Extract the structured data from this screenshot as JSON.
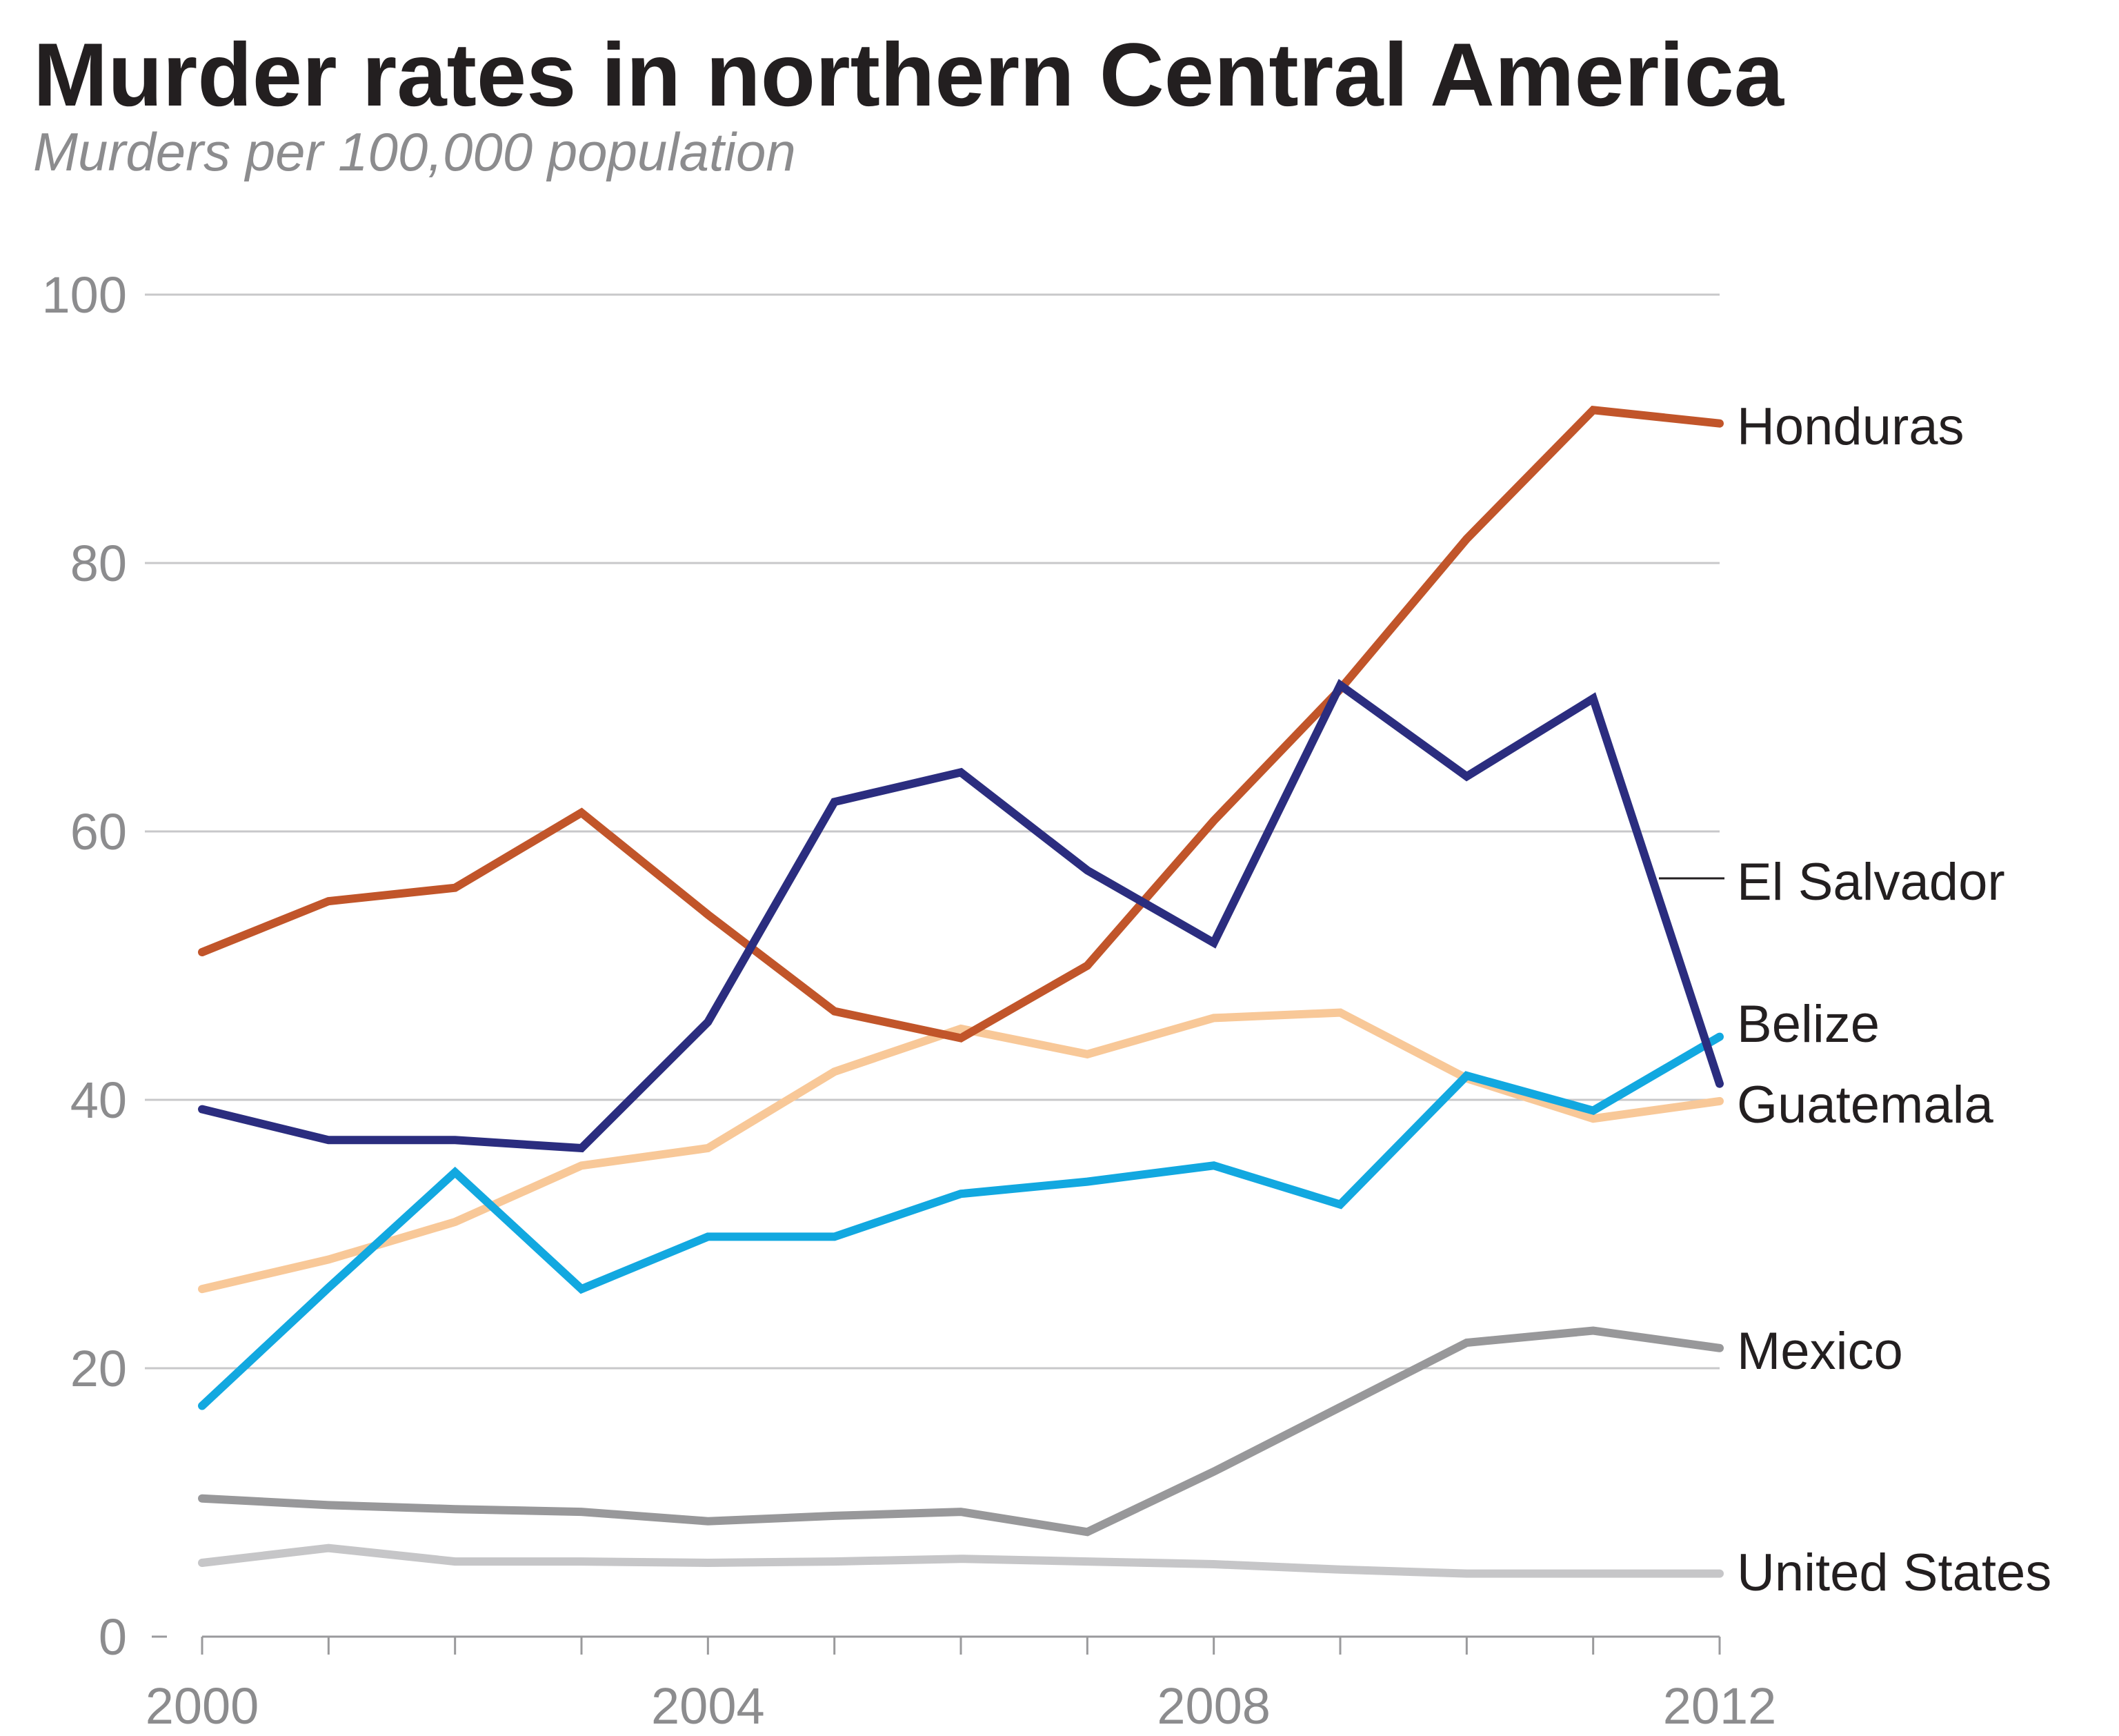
{
  "chart_data": {
    "type": "line",
    "title": "Murder rates in northern Central America",
    "subtitle": "Murders per 100,000 population",
    "xlabel": "",
    "ylabel": "",
    "x": [
      2000,
      2001,
      2002,
      2003,
      2004,
      2005,
      2006,
      2007,
      2008,
      2009,
      2010,
      2011,
      2012
    ],
    "xlim": [
      2000,
      2012
    ],
    "ylim": [
      0,
      100
    ],
    "x_ticks": [
      2000,
      2001,
      2002,
      2003,
      2004,
      2005,
      2006,
      2007,
      2008,
      2009,
      2010,
      2011,
      2012
    ],
    "x_tick_labels": [
      "2000",
      "2004",
      "2008",
      "2012"
    ],
    "y_ticks": [
      0,
      20,
      40,
      60,
      80,
      100
    ],
    "y_tick_labels": [
      "0",
      "20",
      "40",
      "60",
      "80",
      "100"
    ],
    "grid": "horizontal",
    "legend": "direct labels at right",
    "series": [
      {
        "name": "Honduras",
        "color": "#c1552a",
        "values": [
          51.0,
          54.8,
          55.8,
          61.4,
          53.8,
          46.6,
          44.6,
          50.0,
          60.8,
          70.6,
          81.8,
          91.4,
          90.4
        ]
      },
      {
        "name": "El Salvador",
        "color": "#2b2d7f",
        "values": [
          39.3,
          37.0,
          37.0,
          36.4,
          45.8,
          62.2,
          64.4,
          57.1,
          51.7,
          70.9,
          64.1,
          69.9,
          41.2
        ]
      },
      {
        "name": "Belize",
        "color": "#12a8e0",
        "values": [
          17.2,
          26.0,
          34.6,
          25.9,
          29.8,
          29.8,
          33.0,
          33.9,
          35.1,
          32.2,
          41.8,
          39.2,
          44.7
        ]
      },
      {
        "name": "Guatemala",
        "color": "#f8c898",
        "values": [
          25.9,
          28.1,
          30.9,
          35.1,
          36.4,
          42.1,
          45.3,
          43.4,
          46.1,
          46.5,
          41.6,
          38.6,
          39.9
        ]
      },
      {
        "name": "Mexico",
        "color": "#98989a",
        "values": [
          10.3,
          9.8,
          9.5,
          9.3,
          8.6,
          9.0,
          9.3,
          7.8,
          12.3,
          17.1,
          21.9,
          22.8,
          21.5
        ]
      },
      {
        "name": "United States",
        "color": "#c6c6c8",
        "values": [
          5.5,
          6.6,
          5.6,
          5.6,
          5.5,
          5.6,
          5.8,
          5.6,
          5.4,
          5.0,
          4.7,
          4.7,
          4.7
        ]
      }
    ]
  }
}
